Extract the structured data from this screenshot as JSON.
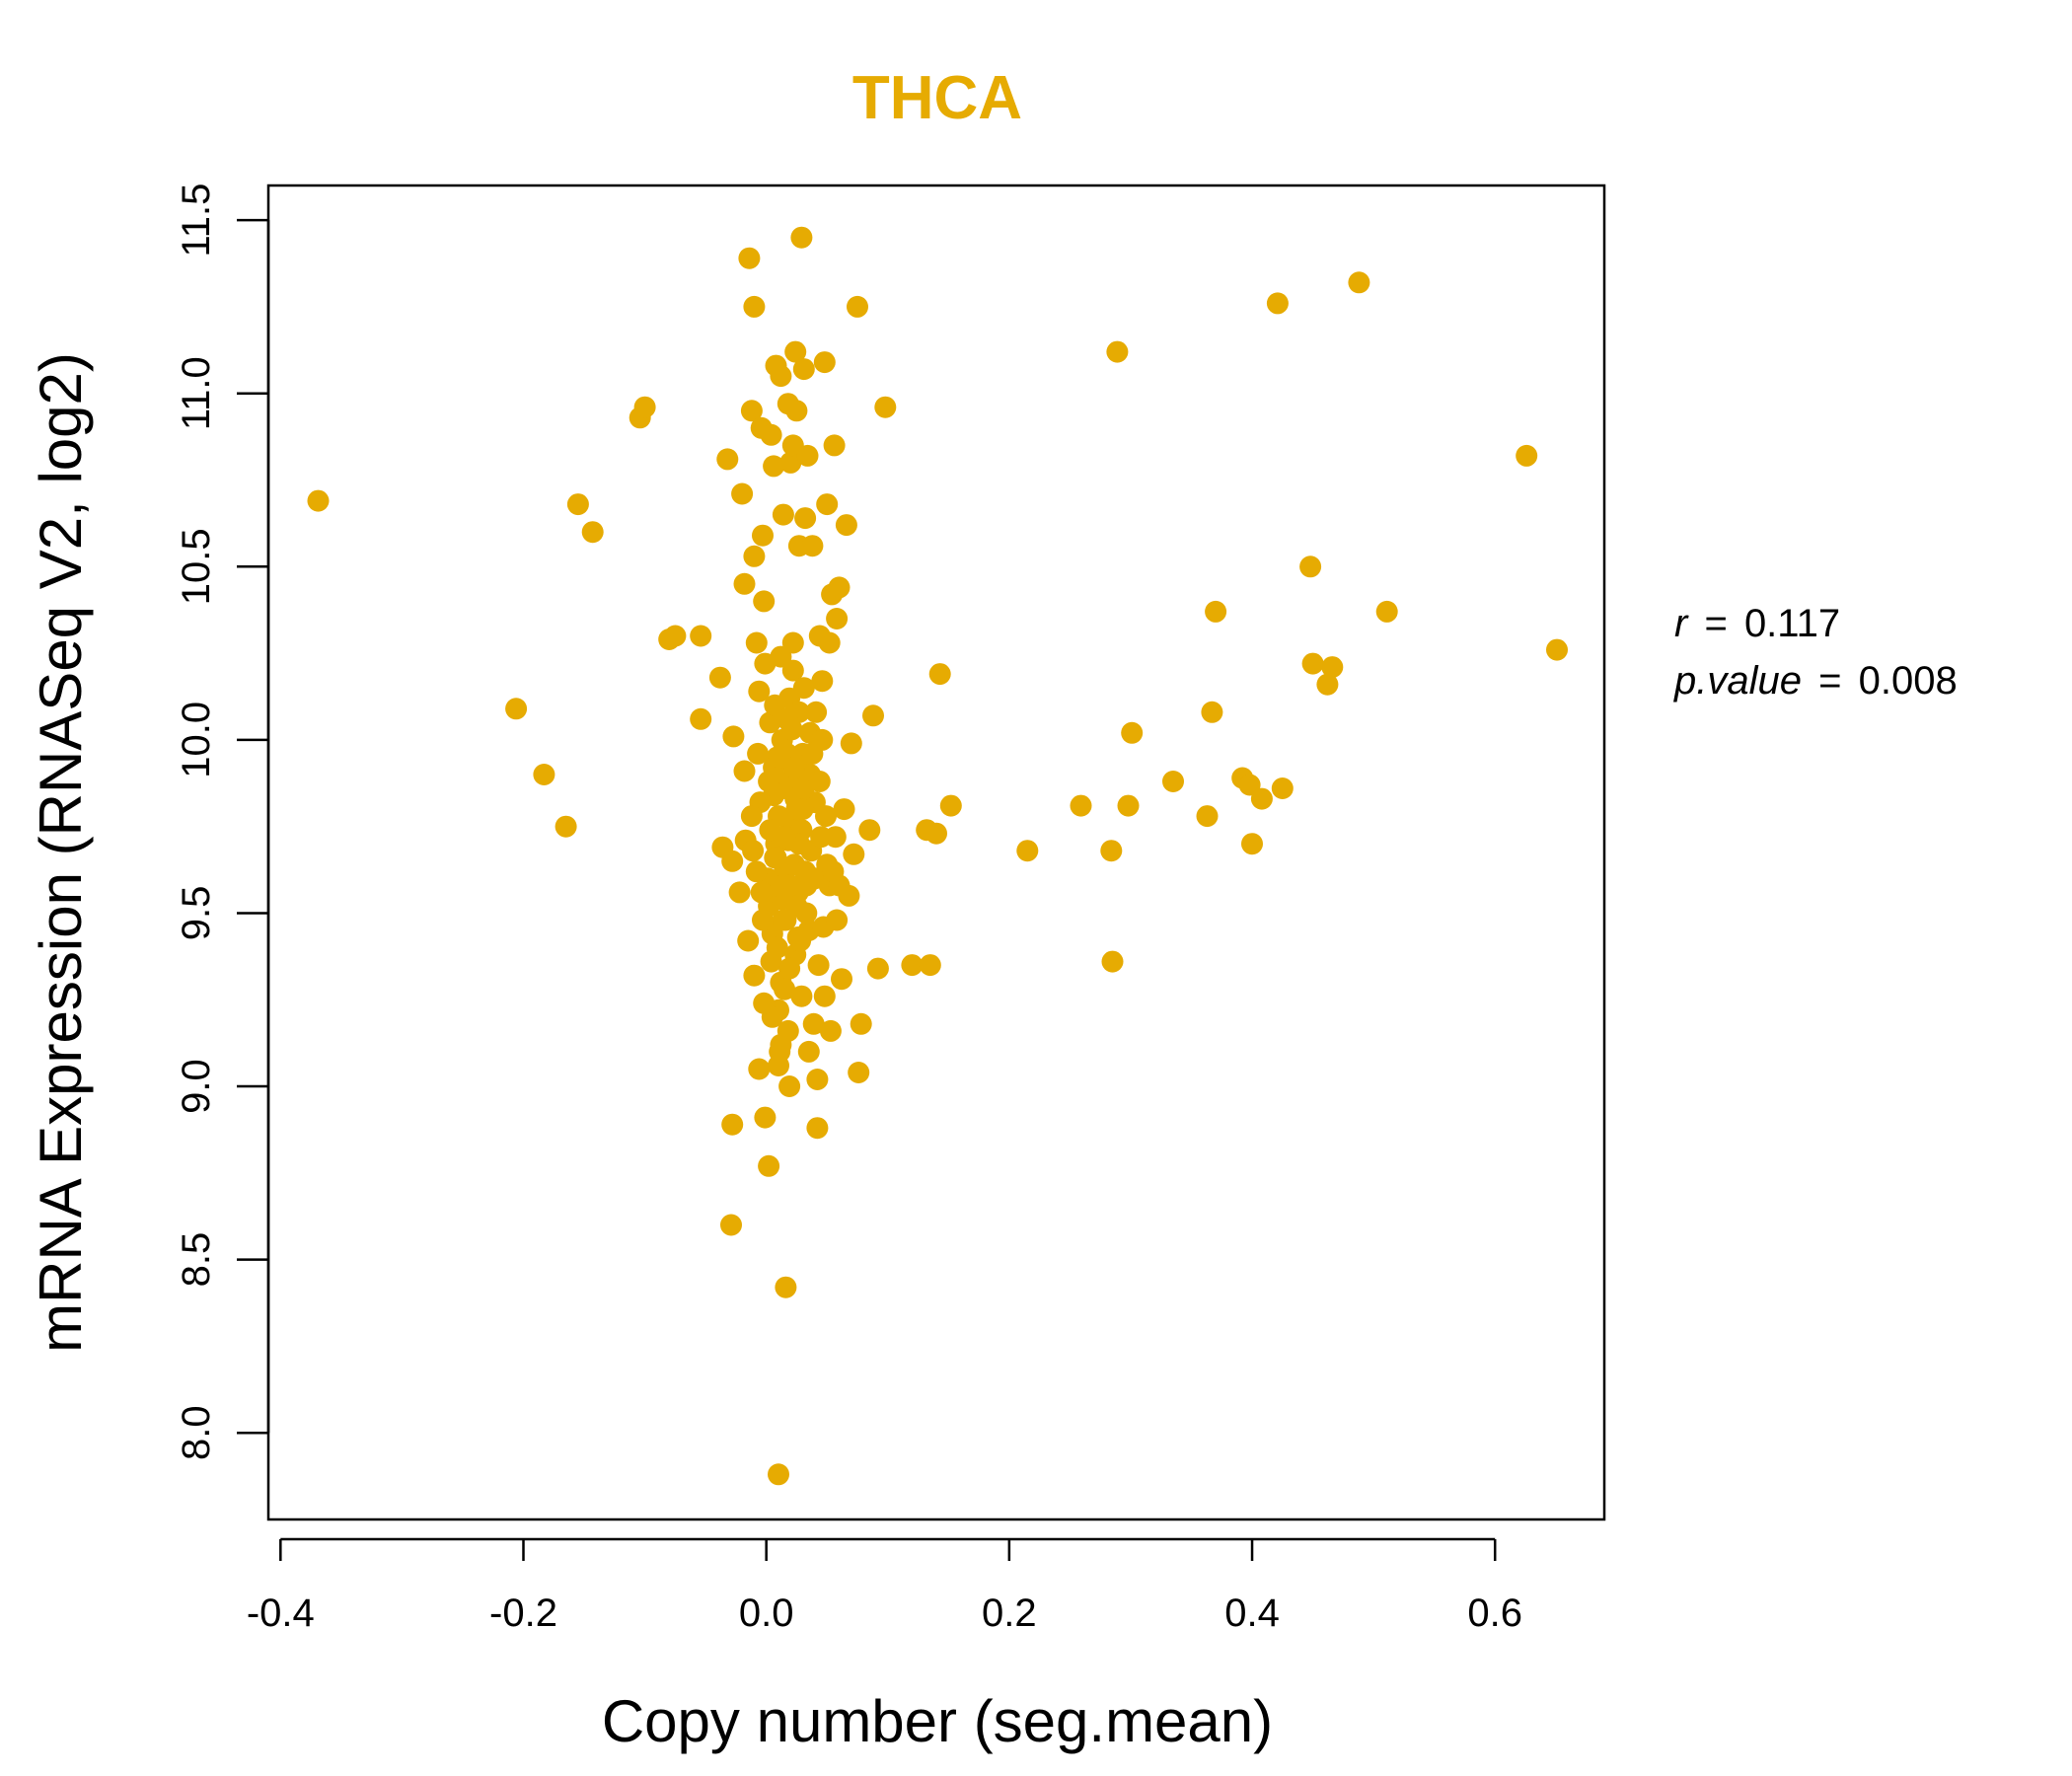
{
  "chart_data": {
    "type": "scatter",
    "title": "THCA",
    "xlabel": "Copy number (seg.mean)",
    "ylabel": "mRNA Expression (RNASeq V2, log2)",
    "xlim": [
      -0.41,
      0.69
    ],
    "ylim": [
      7.75,
      11.6
    ],
    "xticks": [
      "-0.4",
      "-0.2",
      "0.0",
      "0.2",
      "0.4",
      "0.6"
    ],
    "xtick_values": [
      -0.4,
      -0.2,
      0.0,
      0.2,
      0.4,
      0.6
    ],
    "yticks": [
      "8.0",
      "8.5",
      "9.0",
      "9.5",
      "10.0",
      "10.5",
      "11.0",
      "11.5"
    ],
    "ytick_values": [
      8.0,
      8.5,
      9.0,
      9.5,
      10.0,
      10.5,
      11.0,
      11.5
    ],
    "point_color": "#E6AB02",
    "stats": {
      "r_label": "r",
      "r_value": "0.117",
      "p_label": "p.value",
      "p_value": "0.008",
      "equals": "="
    },
    "series": [
      {
        "name": "samples",
        "points": [
          [
            -0.369,
            10.69
          ],
          [
            -0.206,
            10.09
          ],
          [
            -0.183,
            9.9
          ],
          [
            -0.165,
            9.75
          ],
          [
            -0.155,
            10.68
          ],
          [
            -0.143,
            10.6
          ],
          [
            -0.104,
            10.93
          ],
          [
            -0.1,
            10.96
          ],
          [
            -0.08,
            10.29
          ],
          [
            -0.075,
            10.3
          ],
          [
            -0.054,
            10.3
          ],
          [
            -0.054,
            10.06
          ],
          [
            -0.038,
            10.18
          ],
          [
            -0.036,
            9.69
          ],
          [
            -0.032,
            10.81
          ],
          [
            -0.028,
            9.65
          ],
          [
            -0.027,
            10.01
          ],
          [
            -0.028,
            8.89
          ],
          [
            -0.029,
            8.6
          ],
          [
            -0.022,
            9.56
          ],
          [
            -0.02,
            10.71
          ],
          [
            -0.018,
            10.45
          ],
          [
            -0.018,
            9.91
          ],
          [
            -0.017,
            9.71
          ],
          [
            -0.014,
            11.39
          ],
          [
            -0.012,
            10.95
          ],
          [
            -0.01,
            11.25
          ],
          [
            -0.01,
            10.53
          ],
          [
            -0.008,
            10.28
          ],
          [
            -0.006,
            9.05
          ],
          [
            -0.004,
            10.9
          ],
          [
            -0.003,
            10.59
          ],
          [
            -0.002,
            10.4
          ],
          [
            -0.001,
            8.91
          ],
          [
            0.002,
            8.77
          ],
          [
            0.004,
            10.88
          ],
          [
            0.006,
            10.79
          ],
          [
            0.008,
            11.08
          ],
          [
            0.01,
            7.88
          ],
          [
            0.012,
            11.05
          ],
          [
            0.014,
            10.65
          ],
          [
            0.016,
            8.42
          ],
          [
            0.018,
            10.97
          ],
          [
            0.02,
            10.8
          ],
          [
            0.022,
            10.85
          ],
          [
            0.024,
            11.12
          ],
          [
            0.025,
            10.95
          ],
          [
            0.027,
            10.56
          ],
          [
            0.029,
            11.45
          ],
          [
            0.031,
            11.07
          ],
          [
            0.032,
            10.64
          ],
          [
            0.034,
            10.82
          ],
          [
            0.036,
            9.9
          ],
          [
            0.038,
            10.56
          ],
          [
            0.04,
            9.82
          ],
          [
            0.042,
            8.88
          ],
          [
            0.044,
            10.3
          ],
          [
            0.046,
            10.17
          ],
          [
            0.048,
            11.09
          ],
          [
            0.05,
            10.68
          ],
          [
            0.052,
            10.28
          ],
          [
            0.054,
            10.42
          ],
          [
            0.056,
            10.85
          ],
          [
            0.058,
            10.35
          ],
          [
            0.06,
            10.44
          ],
          [
            0.062,
            9.31
          ],
          [
            0.064,
            9.8
          ],
          [
            0.066,
            10.62
          ],
          [
            0.068,
            9.55
          ],
          [
            0.07,
            9.99
          ],
          [
            0.072,
            9.67
          ],
          [
            0.075,
            11.25
          ],
          [
            0.076,
            9.04
          ],
          [
            0.078,
            9.18
          ],
          [
            0.085,
            9.74
          ],
          [
            0.088,
            10.07
          ],
          [
            0.092,
            9.34
          ],
          [
            0.098,
            10.96
          ],
          [
            0.12,
            9.35
          ],
          [
            0.132,
            9.74
          ],
          [
            0.135,
            9.35
          ],
          [
            0.14,
            9.73
          ],
          [
            0.143,
            10.19
          ],
          [
            0.152,
            9.81
          ],
          [
            0.215,
            9.68
          ],
          [
            0.259,
            9.81
          ],
          [
            0.284,
            9.68
          ],
          [
            0.285,
            9.36
          ],
          [
            0.289,
            11.12
          ],
          [
            0.298,
            9.81
          ],
          [
            0.301,
            10.02
          ],
          [
            0.335,
            9.88
          ],
          [
            0.363,
            9.78
          ],
          [
            0.367,
            10.08
          ],
          [
            0.37,
            10.37
          ],
          [
            0.392,
            9.89
          ],
          [
            0.398,
            9.87
          ],
          [
            0.4,
            9.7
          ],
          [
            0.408,
            9.83
          ],
          [
            0.421,
            11.26
          ],
          [
            0.425,
            9.86
          ],
          [
            0.448,
            10.5
          ],
          [
            0.45,
            10.22
          ],
          [
            0.462,
            10.16
          ],
          [
            0.466,
            10.21
          ],
          [
            0.488,
            11.32
          ],
          [
            0.511,
            10.37
          ],
          [
            0.626,
            10.82
          ],
          [
            0.651,
            10.26
          ],
          [
            0.009,
            9.95
          ],
          [
            0.015,
            9.62
          ],
          [
            0.021,
            9.88
          ],
          [
            0.005,
            9.44
          ],
          [
            0.018,
            9.71
          ],
          [
            0.026,
            9.56
          ],
          [
            0.012,
            9.3
          ],
          [
            0.03,
            9.8
          ],
          [
            0.003,
            10.05
          ],
          [
            0.022,
            10.2
          ],
          [
            0.007,
            9.66
          ],
          [
            0.016,
            9.48
          ],
          [
            0.028,
            9.92
          ],
          [
            0.011,
            9.1
          ],
          [
            0.019,
            10.12
          ],
          [
            0.024,
            9.38
          ],
          [
            0.006,
            9.84
          ],
          [
            0.033,
            9.58
          ],
          [
            0.013,
            10.0
          ],
          [
            0.02,
            9.76
          ],
          [
            0.002,
            9.52
          ],
          [
            0.027,
            10.08
          ],
          [
            0.01,
            9.22
          ],
          [
            0.017,
            9.96
          ],
          [
            0.035,
            9.45
          ],
          [
            0.008,
            9.7
          ],
          [
            0.023,
            9.64
          ],
          [
            0.014,
            9.86
          ],
          [
            0.031,
            10.15
          ],
          [
            0.004,
            9.36
          ],
          [
            0.019,
            9.0
          ],
          [
            0.029,
            9.74
          ],
          [
            0.012,
            10.24
          ],
          [
            0.025,
            9.52
          ],
          [
            0.006,
            9.92
          ],
          [
            0.037,
            9.68
          ],
          [
            0.015,
            9.28
          ],
          [
            0.021,
            10.03
          ],
          [
            0.001,
            9.6
          ],
          [
            0.034,
            9.9
          ],
          [
            0.01,
            9.78
          ],
          [
            0.026,
            9.43
          ],
          [
            0.018,
            9.16
          ],
          [
            0.007,
            10.1
          ],
          [
            0.032,
            9.62
          ],
          [
            0.014,
            9.48
          ],
          [
            0.024,
            9.83
          ],
          [
            0.003,
            9.74
          ],
          [
            0.029,
            9.26
          ],
          [
            0.011,
            9.95
          ],
          [
            0.02,
            9.58
          ],
          [
            0.036,
            10.02
          ],
          [
            0.009,
            9.4
          ],
          [
            0.016,
            9.88
          ],
          [
            0.027,
            9.7
          ],
          [
            0.005,
            9.2
          ],
          [
            0.022,
            10.28
          ],
          [
            0.013,
            9.54
          ],
          [
            0.03,
            9.96
          ],
          [
            0.008,
            9.66
          ],
          [
            0.019,
            9.34
          ],
          [
            0.025,
            9.8
          ],
          [
            0.002,
            9.88
          ],
          [
            0.033,
            9.5
          ],
          [
            0.012,
            9.12
          ],
          [
            0.017,
            10.06
          ],
          [
            0.028,
            9.42
          ],
          [
            0.006,
            9.58
          ],
          [
            0.023,
            9.92
          ],
          [
            0.015,
            9.72
          ],
          [
            0.01,
            9.06
          ],
          [
            0.031,
            9.86
          ],
          [
            -0.005,
            9.82
          ],
          [
            -0.008,
            9.62
          ],
          [
            -0.003,
            9.48
          ],
          [
            -0.01,
            9.32
          ],
          [
            -0.006,
            10.14
          ],
          [
            -0.012,
            9.78
          ],
          [
            -0.002,
            9.24
          ],
          [
            -0.015,
            9.42
          ],
          [
            -0.007,
            9.96
          ],
          [
            -0.004,
            9.56
          ],
          [
            -0.011,
            9.68
          ],
          [
            -0.001,
            10.22
          ],
          [
            0.04,
            9.6
          ],
          [
            0.043,
            9.35
          ],
          [
            0.045,
            9.72
          ],
          [
            0.041,
            10.08
          ],
          [
            0.047,
            9.46
          ],
          [
            0.05,
            9.64
          ],
          [
            0.039,
            9.18
          ],
          [
            0.044,
            9.88
          ],
          [
            0.052,
            9.58
          ],
          [
            0.048,
            9.26
          ],
          [
            0.046,
            10.0
          ],
          [
            0.042,
            9.02
          ],
          [
            0.055,
            9.62
          ],
          [
            0.058,
            9.48
          ],
          [
            0.038,
            9.96
          ],
          [
            0.049,
            9.78
          ],
          [
            0.053,
            9.16
          ],
          [
            0.06,
            9.58
          ],
          [
            0.057,
            9.72
          ],
          [
            0.035,
            9.1
          ]
        ]
      }
    ]
  }
}
